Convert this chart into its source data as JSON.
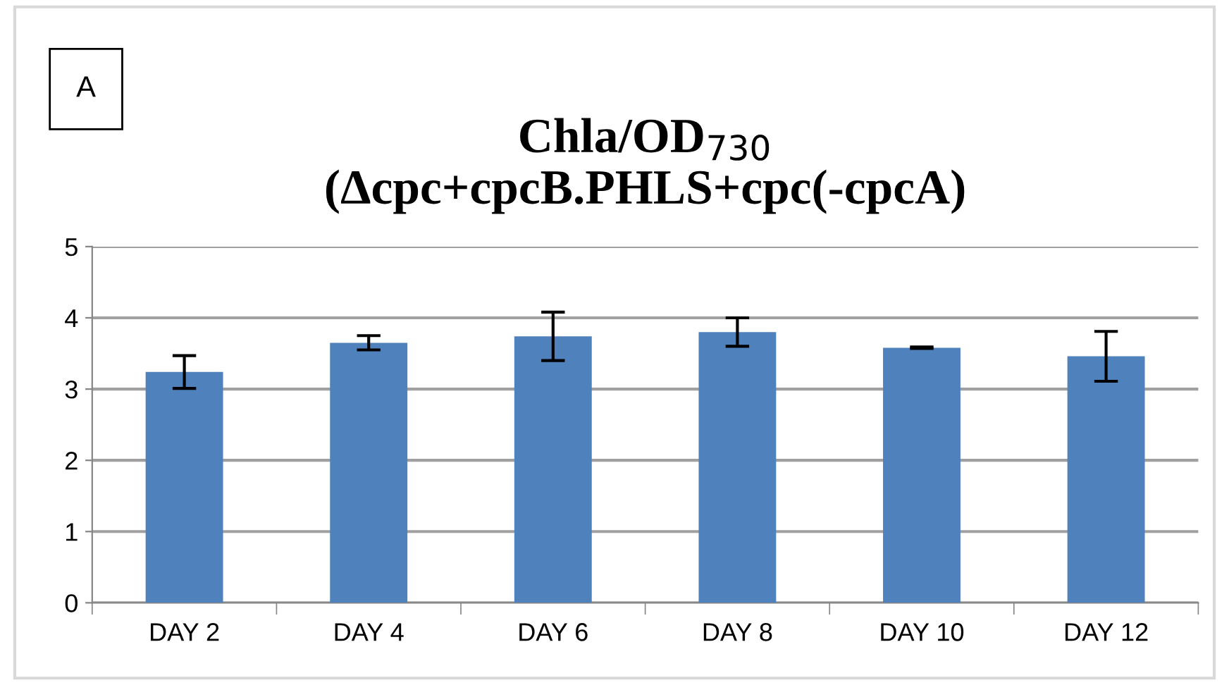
{
  "chart_data": {
    "type": "bar",
    "title": "Chla/OD$_{730}$\n(Δcpc+cpcB.PHLS+cpc(-cpcA)",
    "categories": [
      "DAY 2",
      "DAY 4",
      "DAY 6",
      "DAY 8",
      "DAY 10",
      "DAY 12"
    ],
    "values": [
      3.24,
      3.65,
      3.74,
      3.8,
      3.58,
      3.46
    ],
    "errors": [
      0.23,
      0.1,
      0.34,
      0.2,
      0.01,
      0.35
    ],
    "color": "#4f81bd",
    "ylim": [
      0,
      5
    ],
    "yticks": [
      0,
      1,
      2,
      3,
      4,
      5
    ],
    "grid": "y",
    "legend": false,
    "annotations": [
      "A"
    ]
  }
}
